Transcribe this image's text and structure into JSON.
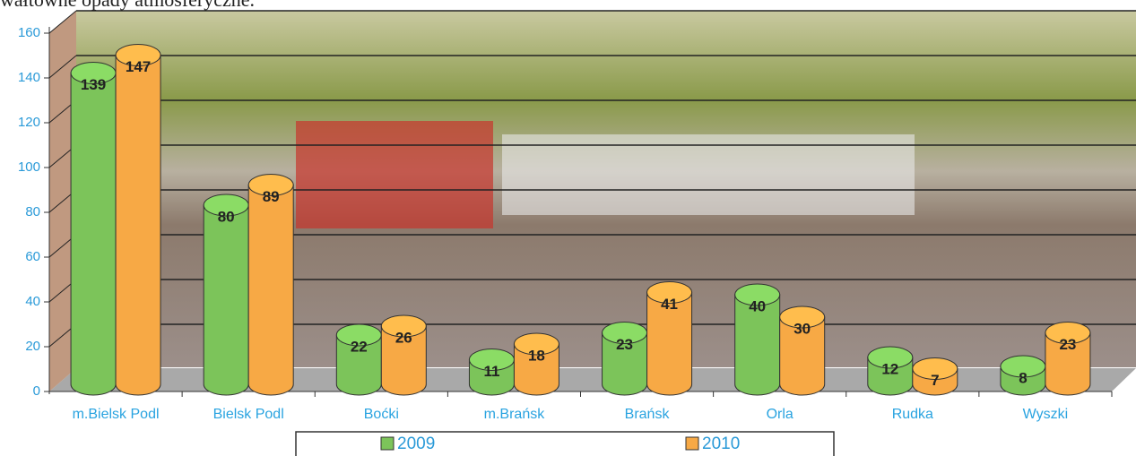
{
  "chart_data": {
    "type": "bar",
    "title": "wałtowne opady atmosferyczne.",
    "categories": [
      "m.Bielsk Podl",
      "Bielsk Podl",
      "Boćki",
      "m.Brańsk",
      "Brańsk",
      "Orla",
      "Rudka",
      "Wyszki"
    ],
    "series": [
      {
        "name": "2009",
        "color": "#7cc45a",
        "values": [
          139,
          80,
          22,
          11,
          23,
          40,
          12,
          8
        ]
      },
      {
        "name": "2010",
        "color": "#f7a945",
        "values": [
          147,
          89,
          26,
          18,
          41,
          30,
          7,
          23
        ]
      }
    ],
    "ylim": [
      0,
      160
    ],
    "yticks": [
      0,
      20,
      40,
      60,
      80,
      100,
      120,
      140,
      160
    ],
    "grid": true
  }
}
